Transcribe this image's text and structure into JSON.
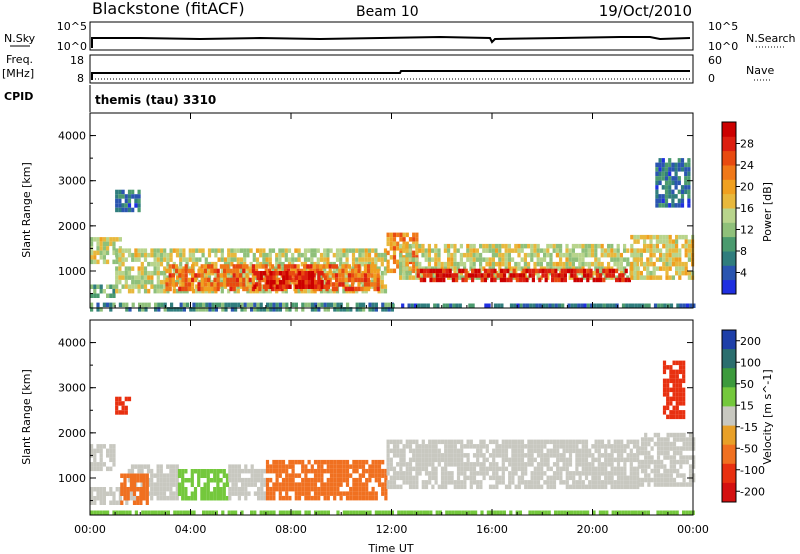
{
  "header": {
    "station": "Blackstone (fitACF)",
    "beam": "Beam 10",
    "date": "19/Oct/2010"
  },
  "top_panels": {
    "nsky_label": "N.Sky",
    "nsearch_label": "N.Search",
    "nsky_ticks": [
      "10^5",
      "10^0"
    ],
    "nsearch_ticks": [
      "10^5",
      "10^0"
    ],
    "freq_label": "Freq.",
    "freq_unit": "[MHz]",
    "freq_ticks": [
      "18",
      "8"
    ],
    "nave_label": "Nave",
    "nave_ticks": [
      "60",
      "0"
    ],
    "cpid_label": "CPID",
    "cpid_text": "themis (tau) 3310"
  },
  "chart_data": [
    {
      "type": "heatmap",
      "title": "",
      "xlabel": "",
      "ylabel": "Slant Range [km]",
      "xlim": [
        0,
        24
      ],
      "ylim": [
        180,
        4500
      ],
      "x_ticks": [
        "00:00",
        "04:00",
        "08:00",
        "12:00",
        "16:00",
        "20:00",
        "00:00"
      ],
      "y_ticks": [
        "1000",
        "2000",
        "3000",
        "4000"
      ],
      "colorbar": {
        "label": "Power [dB]",
        "ticks": [
          "4",
          "8",
          "12",
          "16",
          "20",
          "24",
          "28"
        ],
        "range": [
          0,
          30
        ],
        "colors": [
          "#1f2fe0",
          "#2a55b0",
          "#2f7d7d",
          "#4a9a6e",
          "#8fc07a",
          "#b8d48c",
          "#e8b83c",
          "#f0a020",
          "#f07818",
          "#e84a10",
          "#dd1f10",
          "#cc0000"
        ]
      },
      "bands": [
        {
          "t0": 0.0,
          "t1": 1.0,
          "r0": 450,
          "r1": 700,
          "value": 10
        },
        {
          "t0": 0.0,
          "t1": 1.2,
          "r0": 1250,
          "r1": 1750,
          "value": 14
        },
        {
          "t0": 1.0,
          "t1": 11.8,
          "r0": 550,
          "r1": 1500,
          "value": 14
        },
        {
          "t0": 3.0,
          "t1": 11.5,
          "r0": 650,
          "r1": 1150,
          "value": 22
        },
        {
          "t0": 6.5,
          "t1": 9.5,
          "r0": 700,
          "r1": 1000,
          "value": 27
        },
        {
          "t0": 11.8,
          "t1": 13.0,
          "r0": 1050,
          "r1": 1850,
          "value": 20
        },
        {
          "t0": 12.3,
          "t1": 21.8,
          "r0": 900,
          "r1": 1600,
          "value": 14
        },
        {
          "t0": 13.0,
          "t1": 21.5,
          "r0": 800,
          "r1": 1050,
          "value": 27
        },
        {
          "t0": 21.5,
          "t1": 24.0,
          "r0": 900,
          "r1": 1800,
          "value": 16
        },
        {
          "t0": 1.0,
          "t1": 2.0,
          "r0": 2400,
          "r1": 2800,
          "value": 6
        },
        {
          "t0": 22.5,
          "t1": 23.8,
          "r0": 2500,
          "r1": 3500,
          "value": 6
        },
        {
          "t0": 0.0,
          "t1": 12.0,
          "r0": 200,
          "r1": 300,
          "value": 8
        },
        {
          "t0": 12.0,
          "t1": 24.0,
          "r0": 200,
          "r1": 280,
          "value": 6
        }
      ]
    },
    {
      "type": "heatmap",
      "title": "",
      "xlabel": "Time UT",
      "ylabel": "Slant Range [km]",
      "xlim": [
        0,
        24
      ],
      "ylim": [
        180,
        4500
      ],
      "x_ticks": [
        "00:00",
        "04:00",
        "08:00",
        "12:00",
        "16:00",
        "20:00",
        "00:00"
      ],
      "y_ticks": [
        "1000",
        "2000",
        "3000",
        "4000"
      ],
      "colorbar": {
        "label": "Velocity [m s^-1]",
        "ticks": [
          "200",
          "100",
          "50",
          "15",
          "-15",
          "-50",
          "-100",
          "-200"
        ],
        "colors": [
          "#1e3fa8",
          "#2b6e6e",
          "#3c9a3c",
          "#74c83c",
          "#c8c8c0",
          "#e8a028",
          "#f07020",
          "#e83010",
          "#d41010"
        ]
      },
      "bands": [
        {
          "t0": 0.0,
          "t1": 1.0,
          "r0": 1250,
          "r1": 1750,
          "value": -5
        },
        {
          "t0": 0.0,
          "t1": 1.5,
          "r0": 500,
          "r1": 800,
          "value": -5
        },
        {
          "t0": 1.5,
          "t1": 3.5,
          "r0": 600,
          "r1": 1300,
          "value": -5
        },
        {
          "t0": 1.2,
          "t1": 2.3,
          "r0": 500,
          "r1": 1100,
          "value": -60
        },
        {
          "t0": 3.5,
          "t1": 5.5,
          "r0": 600,
          "r1": 1200,
          "value": 40
        },
        {
          "t0": 5.5,
          "t1": 7.0,
          "r0": 600,
          "r1": 1300,
          "value": -5
        },
        {
          "t0": 7.0,
          "t1": 11.8,
          "r0": 600,
          "r1": 1400,
          "value": -60
        },
        {
          "t0": 11.8,
          "t1": 21.8,
          "r0": 800,
          "r1": 1850,
          "value": -5
        },
        {
          "t0": 21.8,
          "t1": 24.0,
          "r0": 900,
          "r1": 2000,
          "value": -5
        },
        {
          "t0": 1.0,
          "t1": 1.6,
          "r0": 2500,
          "r1": 2800,
          "value": -150
        },
        {
          "t0": 22.8,
          "t1": 23.6,
          "r0": 2400,
          "r1": 3600,
          "value": -150
        },
        {
          "t0": 0.0,
          "t1": 24.0,
          "r0": 200,
          "r1": 280,
          "value": 30
        }
      ]
    }
  ]
}
